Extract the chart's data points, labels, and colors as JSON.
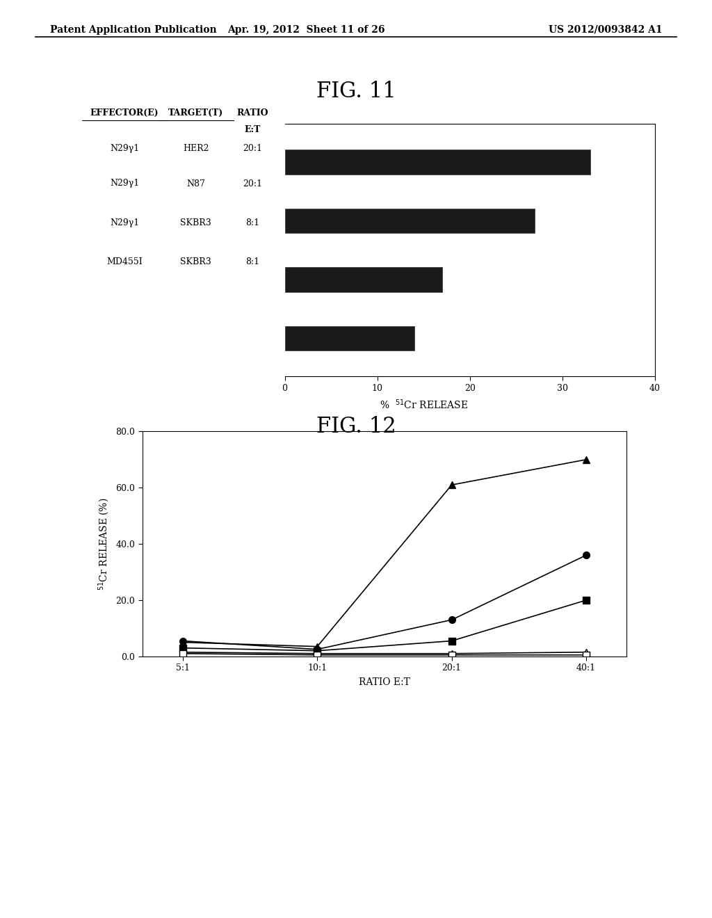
{
  "header_left": "Patent Application Publication",
  "header_mid": "Apr. 19, 2012  Sheet 11 of 26",
  "header_right": "US 2012/0093842 A1",
  "fig11_title": "FIG. 11",
  "fig11_rows": [
    {
      "effector": "N29γ1",
      "target": "HER2",
      "ratio": "20:1",
      "value": 33
    },
    {
      "effector": "N29γ1",
      "target": "N87",
      "ratio": "20:1",
      "value": 27
    },
    {
      "effector": "N29γ1",
      "target": "SKBR3",
      "ratio": "8:1",
      "value": 17
    },
    {
      "effector": "MD455I",
      "target": "SKBR3",
      "ratio": "8:1",
      "value": 14
    }
  ],
  "fig11_xlim": [
    0,
    40
  ],
  "fig11_xticks": [
    0,
    10,
    20,
    30,
    40
  ],
  "fig11_bar_color": "#1a1a1a",
  "fig12_title": "FIG. 12",
  "fig12_series": [
    {
      "marker": "^",
      "filled": true,
      "values": [
        5.0,
        3.5,
        61.0,
        70.0
      ]
    },
    {
      "marker": "o",
      "filled": true,
      "values": [
        5.5,
        2.5,
        13.0,
        36.0
      ]
    },
    {
      "marker": "s",
      "filled": true,
      "values": [
        3.0,
        2.0,
        5.5,
        20.0
      ]
    },
    {
      "marker": "^",
      "filled": false,
      "values": [
        1.5,
        1.0,
        1.0,
        1.5
      ]
    },
    {
      "marker": "s",
      "filled": false,
      "values": [
        1.0,
        0.5,
        0.5,
        0.5
      ]
    }
  ],
  "fig12_xlim_labels": [
    "5:1",
    "10:1",
    "20:1",
    "40:1"
  ],
  "fig12_ylim": [
    0.0,
    80.0
  ],
  "fig12_yticks": [
    0.0,
    20.0,
    40.0,
    60.0,
    80.0
  ],
  "fig12_xlabel": "RATIO E:T",
  "fig12_ylabel": "$^{51}$Cr RELEASE (%)"
}
